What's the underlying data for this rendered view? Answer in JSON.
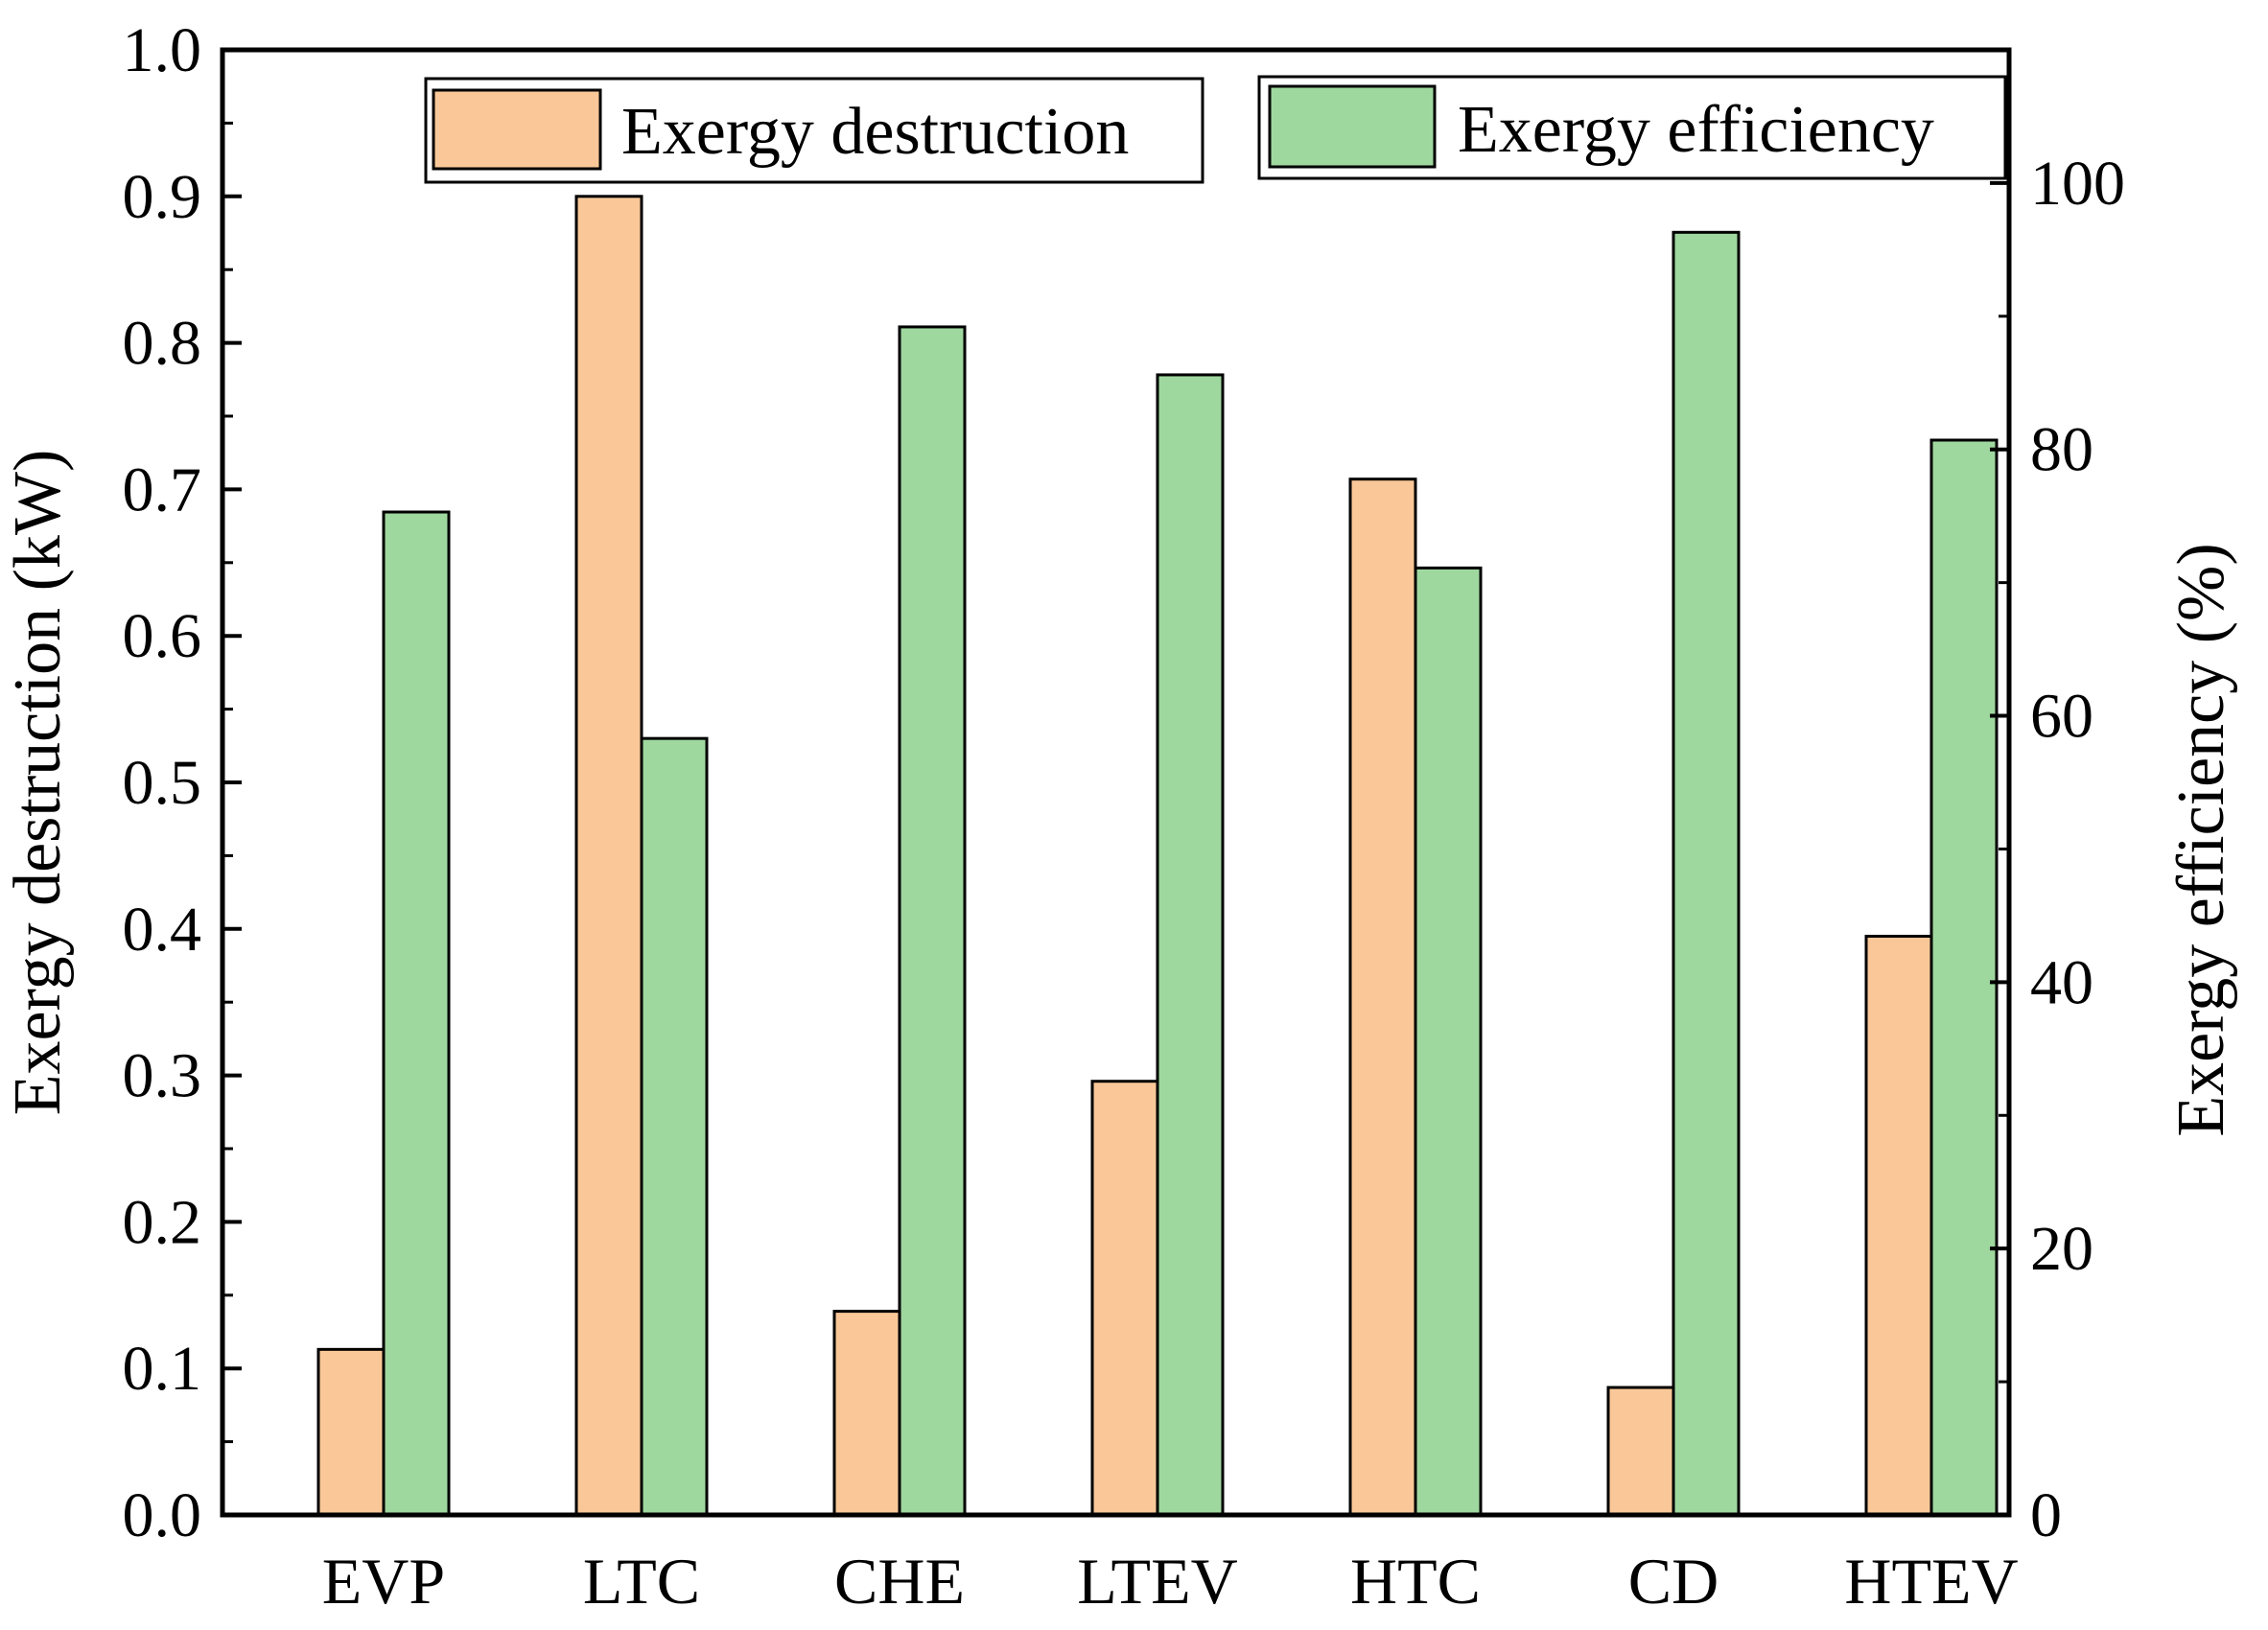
{
  "chart_data": {
    "type": "bar",
    "categories": [
      "EVP",
      "LTC",
      "CHE",
      "LTEV",
      "HTC",
      "CD",
      "HTEV"
    ],
    "series": [
      {
        "name": "Exergy destruction",
        "axis": "left",
        "color": "#FAC898",
        "values": [
          0.113,
          0.9,
          0.139,
          0.296,
          0.707,
          0.087,
          0.395
        ]
      },
      {
        "name": "Exergy efficiency",
        "axis": "right",
        "color": "#9FD89F",
        "values": [
          75.3,
          58.3,
          89.2,
          85.6,
          71.1,
          96.3,
          80.7
        ]
      }
    ],
    "ylabel": "Exergy destruction (kW)",
    "ylabel_right": "Exergy efficiency (%)",
    "ylim": [
      0,
      1.0
    ],
    "ylim_right": [
      0,
      110
    ],
    "yticks": [
      "0.0",
      "0.1",
      "0.2",
      "0.3",
      "0.4",
      "0.5",
      "0.6",
      "0.7",
      "0.8",
      "0.9",
      "1.0"
    ],
    "yticks_right": [
      "0",
      "20",
      "40",
      "60",
      "80",
      "100"
    ],
    "legend_position": "top",
    "grid": false
  }
}
